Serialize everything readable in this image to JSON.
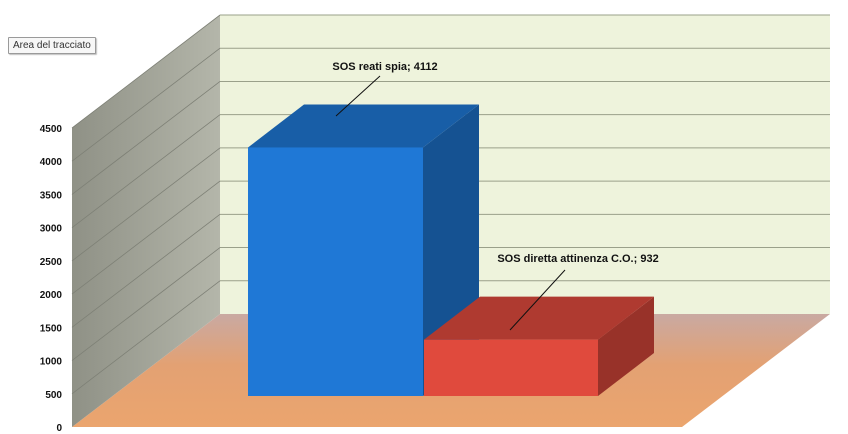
{
  "tooltip": {
    "text": "Area del tracciato"
  },
  "chart_data": {
    "type": "bar",
    "categories": [
      "SOS reati spia",
      "SOS diretta attinenza C.O."
    ],
    "values": [
      4112,
      932
    ],
    "data_labels": [
      "SOS reati spia; 4112",
      "SOS diretta attinenza C.O.; 932"
    ],
    "ylim": [
      0,
      4500
    ],
    "y_ticks": [
      0,
      500,
      1000,
      1500,
      2000,
      2500,
      3000,
      3500,
      4000,
      4500
    ],
    "grid": true,
    "three_d": true,
    "colors": {
      "series": [
        "#1f78d6",
        "#e04a3d"
      ],
      "back_wall": "#eef3dc",
      "side_wall": "#a3a597",
      "floor": "#e6a06e",
      "gridline": "#9aa08a"
    }
  }
}
